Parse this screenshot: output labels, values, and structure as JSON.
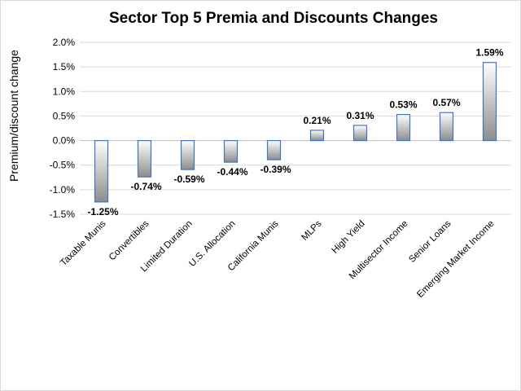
{
  "chart_data": {
    "type": "bar",
    "title": "Sector Top 5 Premia and Discounts Changes",
    "ylabel": "Premium/discount change",
    "xlabel": "",
    "ylim": [
      -1.5,
      2.0
    ],
    "ytick_step": 0.5,
    "grid": true,
    "legend": "none",
    "categories": [
      "Taxable Munis",
      "Convertibles",
      "Limited Duration",
      "U.S. Allocation",
      "California Munis",
      "MLPs",
      "High Yield",
      "Multisector Income",
      "Senior Loans",
      "Emerging Market Income"
    ],
    "values": [
      -1.25,
      -0.74,
      -0.59,
      -0.44,
      -0.39,
      0.21,
      0.31,
      0.53,
      0.57,
      1.59
    ],
    "data_labels": [
      "-1.25%",
      "-0.74%",
      "-0.59%",
      "-0.44%",
      "-0.39%",
      "0.21%",
      "0.31%",
      "0.53%",
      "0.57%",
      "1.59%"
    ],
    "colors": {
      "bar_border": "#4472c4",
      "bar_fill_light": "#ffffff",
      "bar_fill_dark": "#8c8c8c",
      "grid": "#d9d9d9"
    }
  }
}
